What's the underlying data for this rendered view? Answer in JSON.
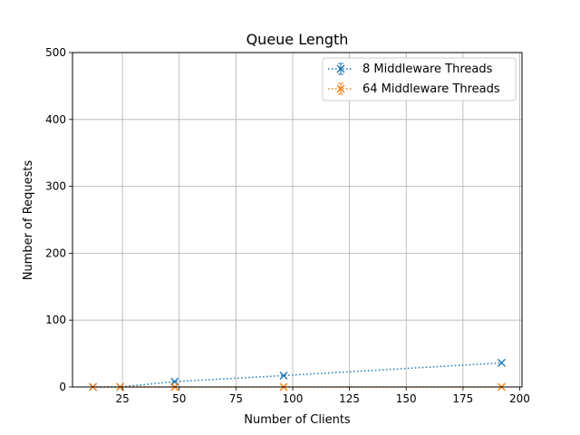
{
  "chart_data": {
    "type": "line",
    "title": "Queue Length",
    "xlabel": "Number of Clients",
    "ylabel": "Number of Requests",
    "xlim": [
      3,
      201
    ],
    "ylim": [
      0,
      500
    ],
    "xticks": [
      25,
      50,
      75,
      100,
      125,
      150,
      175,
      200
    ],
    "yticks": [
      0,
      100,
      200,
      300,
      400,
      500
    ],
    "grid": true,
    "legend_position": "upper right",
    "series": [
      {
        "name": "8 Middleware Threads",
        "color": "#1f77b4",
        "linestyle": "dotted",
        "marker": "x",
        "x": [
          12,
          24,
          48,
          96,
          192
        ],
        "y": [
          0,
          0,
          8,
          17,
          36
        ]
      },
      {
        "name": "64 Middleware Threads",
        "color": "#ff7f0e",
        "linestyle": "dotted",
        "marker": "x",
        "x": [
          12,
          24,
          48,
          96,
          192
        ],
        "y": [
          0,
          0,
          0,
          0,
          0
        ]
      }
    ]
  }
}
